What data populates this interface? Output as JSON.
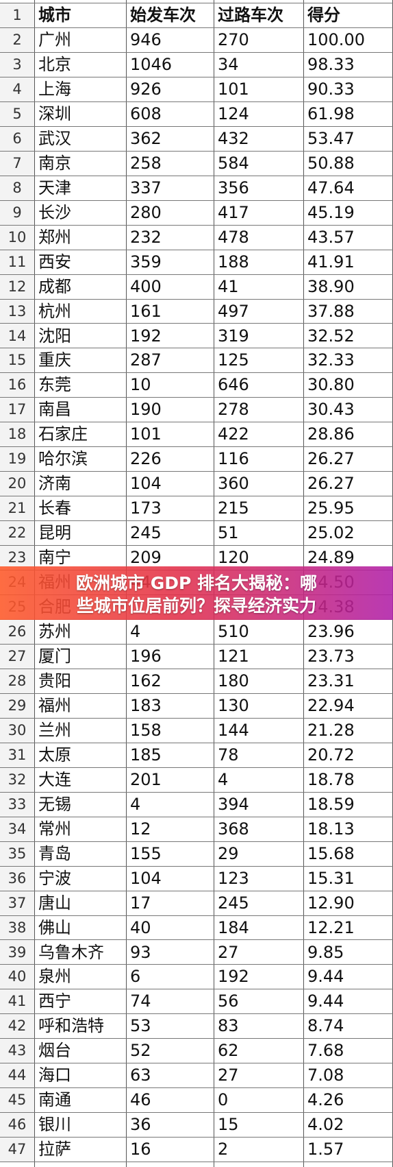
{
  "headers": [
    "城市",
    "始发车次",
    "过路车次",
    "得分"
  ],
  "header_row_number": "1",
  "rows": [
    [
      "2",
      "广州",
      "946",
      "270",
      "100.00"
    ],
    [
      "3",
      "北京",
      "1046",
      "34",
      "98.33"
    ],
    [
      "4",
      "上海",
      "926",
      "101",
      "90.33"
    ],
    [
      "5",
      "深圳",
      "608",
      "124",
      "61.98"
    ],
    [
      "6",
      "武汉",
      "362",
      "432",
      "53.47"
    ],
    [
      "7",
      "南京",
      "258",
      "584",
      "50.88"
    ],
    [
      "8",
      "天津",
      "337",
      "356",
      "47.64"
    ],
    [
      "9",
      "长沙",
      "280",
      "417",
      "45.19"
    ],
    [
      "10",
      "郑州",
      "232",
      "478",
      "43.57"
    ],
    [
      "11",
      "西安",
      "359",
      "188",
      "41.91"
    ],
    [
      "12",
      "成都",
      "400",
      "41",
      "38.90"
    ],
    [
      "13",
      "杭州",
      "161",
      "497",
      "37.88"
    ],
    [
      "14",
      "沈阳",
      "192",
      "319",
      "32.52"
    ],
    [
      "15",
      "重庆",
      "287",
      "125",
      "32.33"
    ],
    [
      "16",
      "东莞",
      "10",
      "646",
      "30.80"
    ],
    [
      "17",
      "南昌",
      "190",
      "278",
      "30.43"
    ],
    [
      "18",
      "石家庄",
      "101",
      "422",
      "28.86"
    ],
    [
      "19",
      "哈尔滨",
      "226",
      "116",
      "26.27"
    ],
    [
      "20",
      "济南",
      "104",
      "360",
      "26.27"
    ],
    [
      "21",
      "长春",
      "173",
      "215",
      "25.95"
    ],
    [
      "22",
      "昆明",
      "245",
      "51",
      "25.02"
    ],
    [
      "23",
      "南宁",
      "209",
      "120",
      "24.89"
    ],
    [
      "24",
      "福州",
      "44",
      "",
      "24.50"
    ],
    [
      "25",
      "合肥",
      "",
      "",
      "24.38"
    ],
    [
      "26",
      "苏州",
      "4",
      "510",
      "23.96"
    ],
    [
      "27",
      "厦门",
      "196",
      "121",
      "23.73"
    ],
    [
      "28",
      "贵阳",
      "162",
      "180",
      "23.31"
    ],
    [
      "29",
      "福州",
      "183",
      "130",
      "22.94"
    ],
    [
      "30",
      "兰州",
      "158",
      "144",
      "21.28"
    ],
    [
      "31",
      "太原",
      "185",
      "78",
      "20.72"
    ],
    [
      "32",
      "大连",
      "201",
      "4",
      "18.78"
    ],
    [
      "33",
      "无锡",
      "4",
      "394",
      "18.59"
    ],
    [
      "34",
      "常州",
      "12",
      "368",
      "18.13"
    ],
    [
      "35",
      "青岛",
      "155",
      "29",
      "15.68"
    ],
    [
      "36",
      "宁波",
      "104",
      "123",
      "15.31"
    ],
    [
      "37",
      "唐山",
      "17",
      "245",
      "12.90"
    ],
    [
      "38",
      "佛山",
      "40",
      "184",
      "12.21"
    ],
    [
      "39",
      "乌鲁木齐",
      "93",
      "27",
      "9.85"
    ],
    [
      "40",
      "泉州",
      "6",
      "192",
      "9.44"
    ],
    [
      "41",
      "西宁",
      "74",
      "56",
      "9.44"
    ],
    [
      "42",
      "呼和浩特",
      "53",
      "83",
      "8.74"
    ],
    [
      "43",
      "烟台",
      "52",
      "62",
      "7.68"
    ],
    [
      "44",
      "海口",
      "63",
      "27",
      "7.08"
    ],
    [
      "45",
      "南通",
      "46",
      "0",
      "4.26"
    ],
    [
      "46",
      "银川",
      "36",
      "15",
      "4.02"
    ],
    [
      "47",
      "拉萨",
      "16",
      "2",
      "1.57"
    ]
  ],
  "banner": {
    "line1": "欧洲城市 GDP 排名大揭秘：哪",
    "line2": "些城市位居前列？探寻经济实力"
  }
}
